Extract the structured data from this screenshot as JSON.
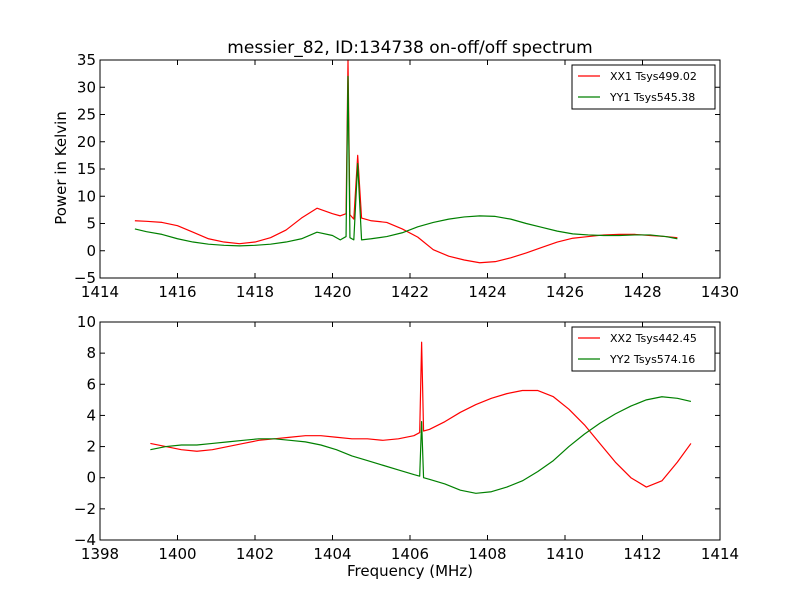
{
  "chart_data": [
    {
      "type": "line",
      "title": "messier_82, ID:134738 on-off/off spectrum",
      "xlabel": "",
      "ylabel": "Power in Kelvin",
      "xlim": [
        1414,
        1430
      ],
      "ylim": [
        -5,
        35
      ],
      "xticks": [
        1414,
        1416,
        1418,
        1420,
        1422,
        1424,
        1426,
        1428,
        1430
      ],
      "yticks": [
        -5,
        0,
        5,
        10,
        15,
        20,
        25,
        30,
        35
      ],
      "grid": false,
      "legend": "top-right",
      "series": [
        {
          "name": "XX1 Tsys499.02",
          "color": "#ff0000",
          "x": [
            1414.9,
            1415.2,
            1415.6,
            1416.0,
            1416.4,
            1416.8,
            1417.2,
            1417.6,
            1418.0,
            1418.4,
            1418.8,
            1419.2,
            1419.6,
            1420.0,
            1420.2,
            1420.35,
            1420.4,
            1420.45,
            1420.55,
            1420.65,
            1420.75,
            1421.0,
            1421.4,
            1421.8,
            1422.2,
            1422.6,
            1423.0,
            1423.4,
            1423.8,
            1424.2,
            1424.6,
            1425.0,
            1425.4,
            1425.8,
            1426.2,
            1426.6,
            1427.0,
            1427.4,
            1427.8,
            1428.2,
            1428.6,
            1428.9
          ],
          "y": [
            5.5,
            5.4,
            5.2,
            4.6,
            3.4,
            2.2,
            1.6,
            1.3,
            1.6,
            2.4,
            3.8,
            6.0,
            7.8,
            6.8,
            6.4,
            6.8,
            35.0,
            6.6,
            5.8,
            17.5,
            6.0,
            5.5,
            5.2,
            4.0,
            2.5,
            0.2,
            -1.0,
            -1.7,
            -2.2,
            -2.0,
            -1.3,
            -0.4,
            0.6,
            1.6,
            2.3,
            2.6,
            2.9,
            3.0,
            3.0,
            2.8,
            2.6,
            2.4
          ]
        },
        {
          "name": "YY1 Tsys545.38",
          "color": "#008000",
          "x": [
            1414.9,
            1415.2,
            1415.6,
            1416.0,
            1416.4,
            1416.8,
            1417.2,
            1417.6,
            1418.0,
            1418.4,
            1418.8,
            1419.2,
            1419.6,
            1420.0,
            1420.2,
            1420.35,
            1420.4,
            1420.45,
            1420.55,
            1420.65,
            1420.75,
            1421.0,
            1421.4,
            1421.8,
            1422.2,
            1422.6,
            1423.0,
            1423.4,
            1423.8,
            1424.2,
            1424.6,
            1425.0,
            1425.4,
            1425.8,
            1426.2,
            1426.6,
            1427.0,
            1427.4,
            1427.8,
            1428.2,
            1428.6,
            1428.9
          ],
          "y": [
            4.0,
            3.5,
            3.0,
            2.2,
            1.6,
            1.2,
            1.0,
            0.9,
            1.0,
            1.2,
            1.6,
            2.2,
            3.4,
            2.8,
            2.0,
            2.6,
            32.0,
            2.4,
            2.0,
            16.0,
            2.0,
            2.2,
            2.6,
            3.3,
            4.4,
            5.2,
            5.8,
            6.2,
            6.4,
            6.3,
            5.8,
            5.0,
            4.3,
            3.6,
            3.1,
            2.9,
            2.8,
            2.8,
            2.9,
            2.9,
            2.6,
            2.2
          ]
        }
      ]
    },
    {
      "type": "line",
      "title": "",
      "xlabel": "Frequency (MHz)",
      "ylabel": "",
      "xlim": [
        1398,
        1414
      ],
      "ylim": [
        -4,
        10
      ],
      "xticks": [
        1398,
        1400,
        1402,
        1404,
        1406,
        1408,
        1410,
        1412,
        1414
      ],
      "yticks": [
        -4,
        -2,
        0,
        2,
        4,
        6,
        8,
        10
      ],
      "grid": false,
      "legend": "top-right",
      "series": [
        {
          "name": "XX2 Tsys442.45",
          "color": "#ff0000",
          "x": [
            1399.3,
            1399.7,
            1400.1,
            1400.5,
            1400.9,
            1401.3,
            1401.7,
            1402.1,
            1402.5,
            1402.9,
            1403.3,
            1403.7,
            1404.1,
            1404.5,
            1404.9,
            1405.3,
            1405.7,
            1406.1,
            1406.25,
            1406.3,
            1406.35,
            1406.5,
            1406.9,
            1407.3,
            1407.7,
            1408.1,
            1408.5,
            1408.9,
            1409.3,
            1409.7,
            1410.1,
            1410.5,
            1410.9,
            1411.3,
            1411.7,
            1412.1,
            1412.5,
            1412.9,
            1413.25
          ],
          "y": [
            2.2,
            2.0,
            1.8,
            1.7,
            1.8,
            2.0,
            2.2,
            2.4,
            2.5,
            2.6,
            2.7,
            2.7,
            2.6,
            2.5,
            2.5,
            2.4,
            2.5,
            2.7,
            2.9,
            8.7,
            3.0,
            3.1,
            3.6,
            4.2,
            4.7,
            5.1,
            5.4,
            5.6,
            5.6,
            5.2,
            4.4,
            3.4,
            2.2,
            1.0,
            0.0,
            -0.6,
            -0.2,
            1.0,
            2.2
          ]
        },
        {
          "name": "YY2 Tsys574.16",
          "color": "#008000",
          "x": [
            1399.3,
            1399.7,
            1400.1,
            1400.5,
            1400.9,
            1401.3,
            1401.7,
            1402.1,
            1402.5,
            1402.9,
            1403.3,
            1403.7,
            1404.1,
            1404.5,
            1404.9,
            1405.3,
            1405.7,
            1406.1,
            1406.25,
            1406.3,
            1406.35,
            1406.5,
            1406.9,
            1407.3,
            1407.7,
            1408.1,
            1408.5,
            1408.9,
            1409.3,
            1409.7,
            1410.1,
            1410.5,
            1410.9,
            1411.3,
            1411.7,
            1412.1,
            1412.5,
            1412.9,
            1413.25
          ],
          "y": [
            1.8,
            2.0,
            2.1,
            2.1,
            2.2,
            2.3,
            2.4,
            2.5,
            2.5,
            2.4,
            2.3,
            2.1,
            1.8,
            1.4,
            1.1,
            0.8,
            0.5,
            0.2,
            0.1,
            3.6,
            0.0,
            -0.1,
            -0.4,
            -0.8,
            -1.0,
            -0.9,
            -0.6,
            -0.2,
            0.4,
            1.1,
            2.0,
            2.8,
            3.5,
            4.1,
            4.6,
            5.0,
            5.2,
            5.1,
            4.9
          ]
        }
      ]
    }
  ]
}
